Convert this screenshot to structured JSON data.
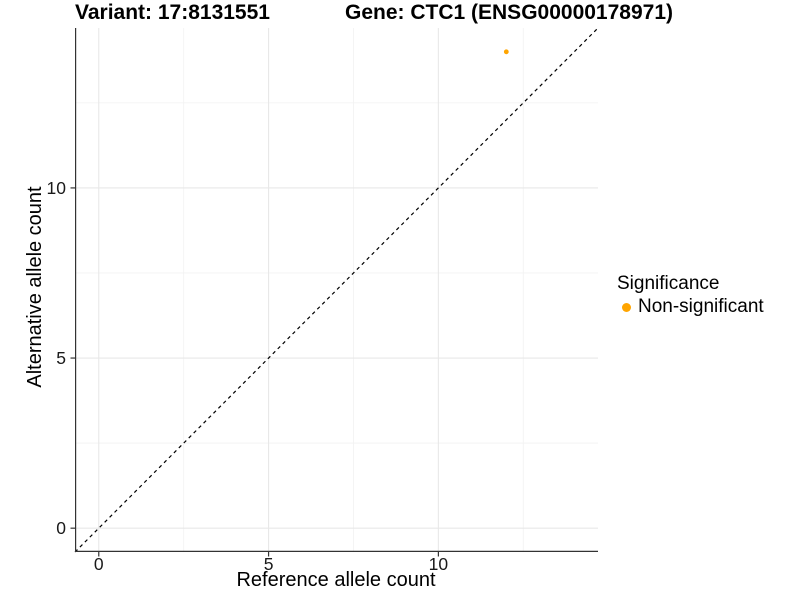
{
  "figure": {
    "title_left": "Variant: 17:8131551",
    "title_right": "Gene: CTC1 (ENSG00000178971)"
  },
  "chart_data": {
    "type": "scatter",
    "title": "Variant: 17:8131551   Gene: CTC1 (ENSG00000178971)",
    "xlabel": "Reference allele count",
    "ylabel": "Alternative allele count",
    "xlim": [
      -0.7,
      14.7
    ],
    "ylim": [
      -0.7,
      14.7
    ],
    "x_ticks": [
      0,
      5,
      10
    ],
    "y_ticks": [
      0,
      5,
      10
    ],
    "grid": true,
    "identity_line": {
      "equation": "y = x",
      "style": "dashed",
      "color": "#000000"
    },
    "series": [
      {
        "name": "Non-significant",
        "color": "#FFA500",
        "points": [
          {
            "x": 12,
            "y": 14
          }
        ]
      }
    ],
    "legend": {
      "title": "Significance",
      "position": "right",
      "items": [
        {
          "label": "Non-significant",
          "color": "#FFA500"
        }
      ]
    }
  },
  "colors": {
    "background": "#FFFFFF",
    "axis_line": "#333333",
    "tick_text": "#1A1A1A",
    "grid_major": "#E8E8E8",
    "grid_minor": "#F3F3F3",
    "point": "#FFA500"
  }
}
